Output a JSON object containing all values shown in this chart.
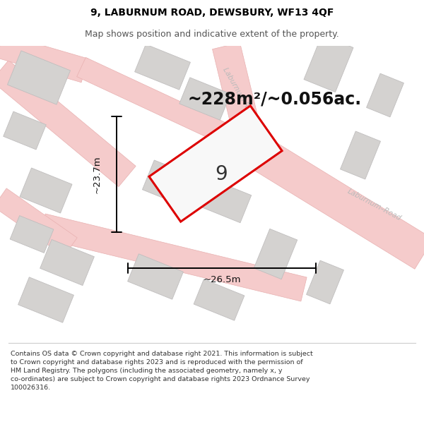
{
  "title_line1": "9, LABURNUM ROAD, DEWSBURY, WF13 4QF",
  "title_line2": "Map shows position and indicative extent of the property.",
  "area_text": "~228m²/~0.056ac.",
  "label_width": "~26.5m",
  "label_height": "~23.7m",
  "property_number": "9",
  "footer_text": "Contains OS data © Crown copyright and database right 2021. This information is subject\nto Crown copyright and database rights 2023 and is reproduced with the permission of\nHM Land Registry. The polygons (including the associated geometry, namely x, y\nco-ordinates) are subject to Crown copyright and database rights 2023 Ordnance Survey\n100026316.",
  "map_bg_color": "#f2f1f0",
  "road_fill_color": "#f5cbcb",
  "road_edge_color": "#e8b0b0",
  "building_fill_color": "#d4d2d0",
  "building_edge_color": "#c0bebe",
  "property_fill": "#f8f8f8",
  "property_edge_color": "#dd0000",
  "prop_lw": 2.2,
  "dim_color": "#111111",
  "area_fontsize": 17,
  "num_fontsize": 20,
  "road_label_color": "#bbbbbb",
  "title_fontsize": 10,
  "subtitle_fontsize": 9,
  "footer_fontsize": 6.8
}
